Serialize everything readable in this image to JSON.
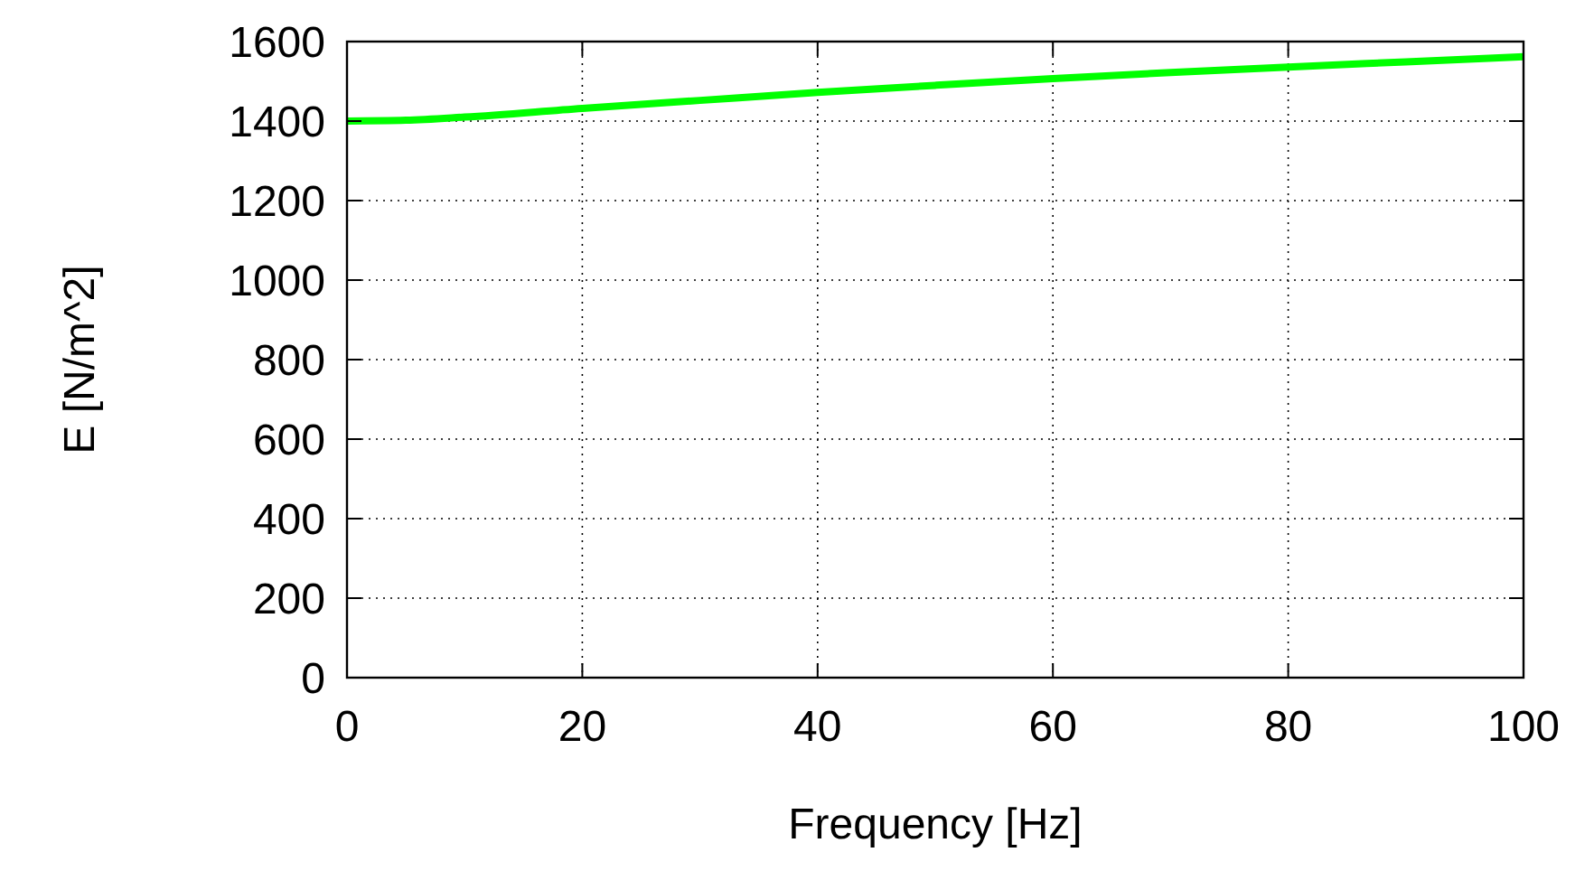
{
  "chart_data": {
    "type": "line",
    "xlabel": "Frequency [Hz]",
    "ylabel": "E [N/m^2]",
    "x": [
      0,
      5,
      10,
      20,
      30,
      40,
      50,
      60,
      70,
      80,
      90,
      100
    ],
    "series": [
      {
        "color": "#00ff00",
        "values": [
          1400,
          1402,
          1410,
          1432,
          1452,
          1472,
          1490,
          1507,
          1522,
          1536,
          1549,
          1562
        ]
      }
    ],
    "xlim": [
      0,
      100
    ],
    "ylim": [
      0,
      1600
    ],
    "xticks": [
      0,
      20,
      40,
      60,
      80,
      100
    ],
    "yticks": [
      0,
      200,
      400,
      600,
      800,
      1000,
      1200,
      1400,
      1600
    ],
    "grid": true,
    "line_style": "solid"
  }
}
